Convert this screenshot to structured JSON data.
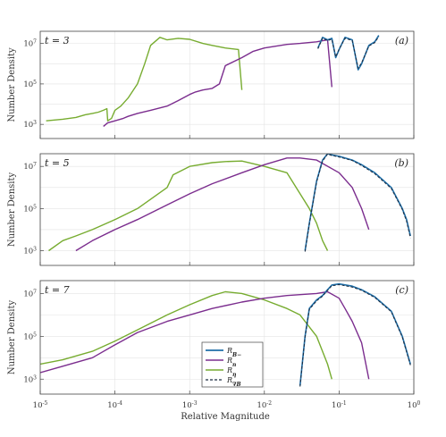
{
  "chart_data": {
    "type": "line",
    "xscale": "log",
    "yscale": "log",
    "xlim": [
      1e-05,
      1
    ],
    "xlabel": "Relative Magnitude",
    "x_tick_labels": [
      "10-5",
      "10-4",
      "10-3",
      "10-2",
      "10-1",
      "100"
    ],
    "grid": true,
    "legend": {
      "placement": "bottom panel, lower middle",
      "entries": [
        {
          "label": "R_B−",
          "color": "#1f6fa8",
          "style": "solid"
        },
        {
          "label": "R_n",
          "color": "#7b2d8e",
          "style": "solid"
        },
        {
          "label": "R_η",
          "color": "#77ac30",
          "style": "solid"
        },
        {
          "label": "R_∇B",
          "color": "#1a2a40",
          "style": "dashed"
        }
      ]
    },
    "panels": [
      {
        "label": "(a)",
        "time": "t = 3",
        "ylabel": "Number Density",
        "ylim": [
          200,
          40000000
        ],
        "yticks": [
          {
            "v": 1000,
            "t": "103"
          },
          {
            "v": 100000,
            "t": "105"
          },
          {
            "v": 10000000,
            "t": "107"
          }
        ],
        "series": [
          {
            "key": "eta",
            "x": [
              1.2e-05,
              2e-05,
              3e-05,
              4e-05,
              5e-05,
              6e-05,
              7e-05,
              7.8e-05,
              8e-05,
              9e-05,
              0.0001,
              0.00012,
              0.00015,
              0.0002,
              0.00025,
              0.0003,
              0.0004,
              0.0005,
              0.0007,
              0.001,
              0.0015,
              0.002,
              0.003,
              0.0045,
              0.005
            ],
            "y": [
              1500,
              1800,
              2200,
              3000,
              3500,
              4000,
              5000,
              6000,
              1500,
              2000,
              5000,
              8000,
              20000,
              100000,
              1000000,
              8000000,
              20000000,
              15000000,
              18000000,
              16000000,
              10000000,
              8000000,
              6000000,
              5000000,
              50000
            ]
          },
          {
            "key": "n",
            "x": [
              7e-05,
              8e-05,
              0.0001,
              0.00013,
              0.00015,
              0.0002,
              0.0003,
              0.0005,
              0.0007,
              0.001,
              0.0012,
              0.0015,
              0.002,
              0.0025,
              0.003,
              0.005,
              0.007,
              0.01,
              0.02,
              0.03,
              0.05,
              0.07,
              0.08
            ],
            "y": [
              800,
              1200,
              1500,
              2000,
              2500,
              3500,
              5000,
              8000,
              15000,
              30000,
              40000,
              50000,
              60000,
              100000,
              800000,
              2000000,
              4000000,
              6000000,
              9000000,
              10000000,
              12000000,
              15000000,
              70000
            ]
          },
          {
            "key": "B",
            "x": [
              0.052,
              0.06,
              0.07,
              0.08,
              0.09,
              0.1,
              0.12,
              0.15,
              0.18,
              0.2,
              0.25,
              0.3,
              0.34
            ],
            "y": [
              6000000,
              20000000,
              15000000,
              18000000,
              2000000,
              5000000,
              20000000,
              15000000,
              500000,
              1000000,
              8000000,
              12000000,
              25000000
            ]
          },
          {
            "key": "gradB",
            "x": [
              0.052,
              0.06,
              0.07,
              0.08,
              0.09,
              0.1,
              0.12,
              0.15,
              0.18,
              0.2,
              0.25,
              0.3,
              0.34
            ],
            "y": [
              5500000,
              18000000,
              14000000,
              16000000,
              2200000,
              5200000,
              18000000,
              14000000,
              600000,
              1100000,
              7500000,
              11000000,
              22000000
            ]
          }
        ]
      },
      {
        "label": "(b)",
        "time": "t = 5",
        "ylabel": "Number Density",
        "ylim": [
          200,
          40000000
        ],
        "yticks": [
          {
            "v": 1000,
            "t": "103"
          },
          {
            "v": 100000,
            "t": "105"
          },
          {
            "v": 10000000,
            "t": "107"
          }
        ],
        "series": [
          {
            "key": "eta",
            "x": [
              1.3e-05,
              2e-05,
              3e-05,
              5e-05,
              0.0001,
              0.0002,
              0.0005,
              0.0006,
              0.001,
              0.002,
              0.003,
              0.005,
              0.01,
              0.02,
              0.04,
              0.05,
              0.06,
              0.07
            ],
            "y": [
              1000,
              3000,
              5000,
              10000,
              30000,
              100000,
              1000000,
              4000000,
              10000000,
              15000000,
              17000000,
              18000000,
              10000000,
              5000000,
              100000,
              20000,
              3000,
              1000
            ]
          },
          {
            "key": "n",
            "x": [
              3e-05,
              5e-05,
              0.0001,
              0.0002,
              0.0005,
              0.001,
              0.002,
              0.005,
              0.01,
              0.02,
              0.03,
              0.05,
              0.1,
              0.15,
              0.2,
              0.25
            ],
            "y": [
              1000,
              3000,
              10000,
              30000,
              150000,
              500000,
              1500000,
              5000000,
              12000000,
              25000000,
              25000000,
              20000000,
              5000000,
              1000000,
              100000,
              10000
            ]
          },
          {
            "key": "B",
            "x": [
              0.035,
              0.04,
              0.05,
              0.06,
              0.07,
              0.08,
              0.1,
              0.15,
              0.2,
              0.3,
              0.5,
              0.7,
              0.8,
              0.9
            ],
            "y": [
              1000,
              20000,
              2000000,
              20000000,
              40000000,
              35000000,
              30000000,
              20000000,
              12000000,
              5000000,
              1000000,
              100000,
              30000,
              5000
            ]
          },
          {
            "key": "gradB",
            "x": [
              0.035,
              0.04,
              0.05,
              0.06,
              0.07,
              0.08,
              0.1,
              0.15,
              0.2,
              0.3,
              0.5,
              0.7,
              0.8,
              0.9
            ],
            "y": [
              900,
              18000,
              1800000,
              18000000,
              38000000,
              33000000,
              28000000,
              19000000,
              11000000,
              4500000,
              900000,
              90000,
              25000,
              4000
            ]
          }
        ]
      },
      {
        "label": "(c)",
        "time": "t = 7",
        "ylabel": "Number Density",
        "ylim": [
          200,
          40000000
        ],
        "yticks": [
          {
            "v": 1000,
            "t": "103"
          },
          {
            "v": 100000,
            "t": "105"
          },
          {
            "v": 10000000,
            "t": "107"
          }
        ],
        "series": [
          {
            "key": "eta",
            "x": [
              1e-05,
              2e-05,
              5e-05,
              0.0001,
              0.0002,
              0.0005,
              0.001,
              0.002,
              0.003,
              0.005,
              0.01,
              0.02,
              0.03,
              0.05,
              0.07,
              0.08
            ],
            "y": [
              5000,
              8000,
              20000,
              60000,
              200000,
              1000000,
              3000000,
              8000000,
              12000000,
              10000000,
              5000000,
              2000000,
              1000000,
              100000,
              5000,
              1000
            ]
          },
          {
            "key": "n",
            "x": [
              1e-05,
              2e-05,
              5e-05,
              0.0001,
              0.0002,
              0.0005,
              0.001,
              0.002,
              0.005,
              0.01,
              0.02,
              0.05,
              0.07,
              0.1,
              0.12,
              0.15,
              0.2,
              0.25
            ],
            "y": [
              2000,
              4000,
              10000,
              40000,
              150000,
              500000,
              1000000,
              2000000,
              4000000,
              6000000,
              8000000,
              10000000,
              12000000,
              6000000,
              2000000,
              500000,
              50000,
              1000
            ]
          },
          {
            "key": "B",
            "x": [
              0.03,
              0.035,
              0.04,
              0.05,
              0.06,
              0.07,
              0.08,
              0.1,
              0.15,
              0.2,
              0.3,
              0.5,
              0.7,
              0.9
            ],
            "y": [
              500,
              100000,
              2000000,
              5000000,
              8000000,
              15000000,
              25000000,
              28000000,
              22000000,
              15000000,
              7000000,
              1500000,
              100000,
              5000
            ]
          },
          {
            "key": "gradB",
            "x": [
              0.03,
              0.035,
              0.04,
              0.05,
              0.06,
              0.07,
              0.08,
              0.1,
              0.15,
              0.2,
              0.3,
              0.5,
              0.7,
              0.9
            ],
            "y": [
              450,
              90000,
              1800000,
              4500000,
              7500000,
              14000000,
              23000000,
              26000000,
              20000000,
              14000000,
              6500000,
              1400000,
              90000,
              4500
            ]
          }
        ]
      }
    ]
  },
  "series_styles": {
    "B": {
      "color": "#1f6fa8",
      "width": 1.6,
      "dash": ""
    },
    "n": {
      "color": "#7b2d8e",
      "width": 1.4,
      "dash": ""
    },
    "eta": {
      "color": "#77ac30",
      "width": 1.4,
      "dash": ""
    },
    "gradB": {
      "color": "#1a2a40",
      "width": 1.0,
      "dash": "3,2"
    }
  }
}
